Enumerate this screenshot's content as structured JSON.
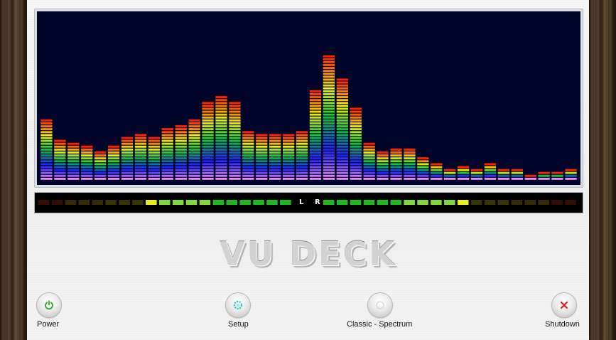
{
  "title": "VU DECK",
  "spectrum": {
    "bands": [
      0.37,
      0.25,
      0.23,
      0.22,
      0.17,
      0.22,
      0.27,
      0.28,
      0.26,
      0.33,
      0.34,
      0.38,
      0.48,
      0.52,
      0.48,
      0.31,
      0.29,
      0.28,
      0.28,
      0.3,
      0.55,
      0.77,
      0.63,
      0.44,
      0.23,
      0.18,
      0.19,
      0.19,
      0.15,
      0.11,
      0.08,
      0.09,
      0.07,
      0.1,
      0.08,
      0.08,
      0.04,
      0.05,
      0.06,
      0.08
    ],
    "segments_total": 56,
    "palette": [
      "#e88cf0",
      "#2020ff",
      "#00c040",
      "#f0f000",
      "#ff2000"
    ]
  },
  "vu_meter": {
    "left_level": 0.57,
    "right_level": 0.57,
    "segments_per_channel": 19,
    "left_label": "L",
    "right_label": "R"
  },
  "buttons": [
    {
      "id": "power",
      "label": "Power",
      "icon": "power-icon",
      "color": "#2ea82e"
    },
    {
      "id": "setup",
      "label": "Setup",
      "icon": "gear-icon",
      "color": "#2ec4c4"
    },
    {
      "id": "classic-spectrum",
      "label": "Classic - Spectrum",
      "icon": "blank-icon",
      "color": "#bcbcbc"
    },
    {
      "id": "shutdown",
      "label": "Shutdown",
      "icon": "close-icon",
      "color": "#e02020"
    }
  ]
}
